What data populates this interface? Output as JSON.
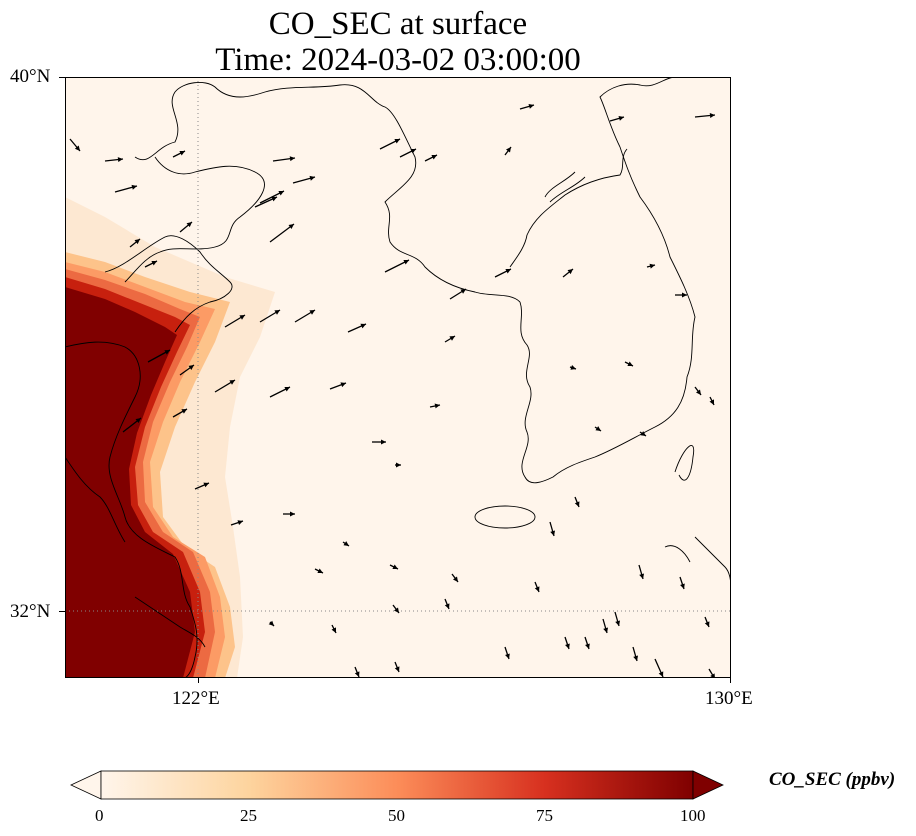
{
  "title": {
    "line1": "CO_SEC at surface",
    "line2": "Time: 2024-03-02 03:00:00"
  },
  "axes": {
    "lat_labels": [
      "40°N",
      "32°N"
    ],
    "lon_labels": [
      "122°E",
      "130°E"
    ],
    "lat_range": [
      31,
      40
    ],
    "lon_range": [
      120,
      130
    ]
  },
  "colorbar": {
    "label": "CO_SEC (ppbv)",
    "ticks": [
      "0",
      "25",
      "50",
      "75",
      "100"
    ],
    "range": [
      0,
      100
    ],
    "colormap": [
      "#fff5eb",
      "#fdd49e",
      "#fc8d59",
      "#d7301f",
      "#7f0000"
    ],
    "extend": "both"
  },
  "chart_data": {
    "type": "heatmap",
    "title": "CO_SEC at surface",
    "subtitle": "Time: 2024-03-02 03:00:00",
    "field": "CO_SEC",
    "units": "ppbv",
    "vmin": 0,
    "vmax": 100,
    "xlim": [
      120,
      130
    ],
    "ylim": [
      31,
      40
    ],
    "gridlines": {
      "lon": [
        122,
        130
      ],
      "lat": [
        32,
        40
      ]
    },
    "high_concentration_region": "western edge along Chinese coast (lon 120–122.5°E)",
    "background_value": 0,
    "wind_vectors": true
  }
}
